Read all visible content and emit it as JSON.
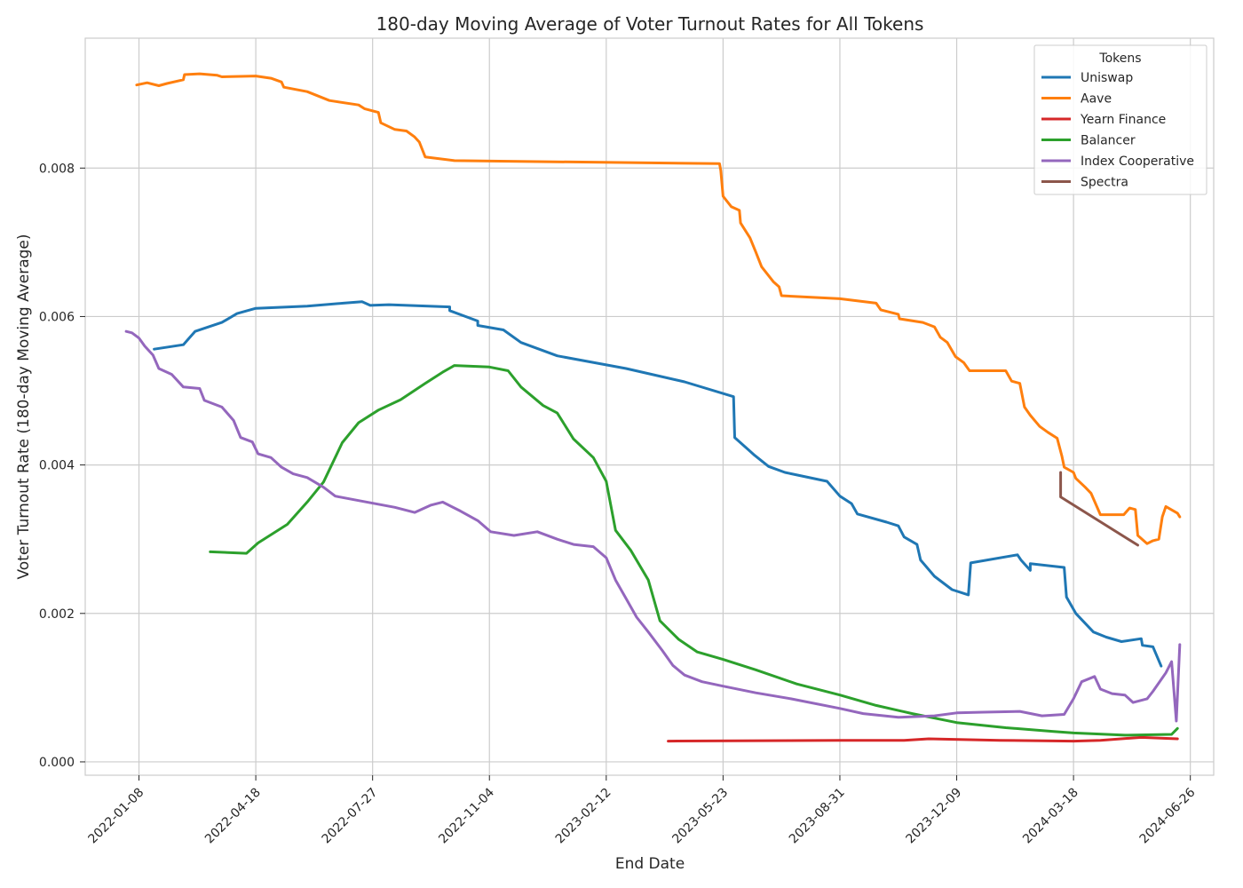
{
  "chart_data": {
    "type": "line",
    "title": "180-day Moving Average of Voter Turnout Rates for All Tokens",
    "xlabel": "End Date",
    "ylabel": "Voter Turnout Rate (180-day Moving Average)",
    "x_ticks": [
      "2022-01-08",
      "2022-04-18",
      "2022-07-27",
      "2022-11-04",
      "2023-02-12",
      "2023-05-23",
      "2023-08-31",
      "2023-12-09",
      "2024-03-18",
      "2024-06-26"
    ],
    "y_ticks": [
      "0.000",
      "0.002",
      "0.004",
      "0.006",
      "0.008"
    ],
    "xlim": [
      "2021-11-23",
      "2024-07-16"
    ],
    "ylim": [
      -0.00018,
      0.00975
    ],
    "grid": true,
    "legend_title": "Tokens",
    "legend_position": "top-right",
    "series": [
      {
        "name": "Uniswap",
        "color": "#1f77b4",
        "points": [
          [
            "2022-01-21",
            0.00556
          ],
          [
            "2022-02-15",
            0.00562
          ],
          [
            "2022-02-25",
            0.0058
          ],
          [
            "2022-03-20",
            0.00592
          ],
          [
            "2022-04-02",
            0.00604
          ],
          [
            "2022-04-18",
            0.00611
          ],
          [
            "2022-06-01",
            0.00614
          ],
          [
            "2022-07-02",
            0.00618
          ],
          [
            "2022-07-18",
            0.0062
          ],
          [
            "2022-07-25",
            0.00615
          ],
          [
            "2022-08-10",
            0.00616
          ],
          [
            "2022-10-01",
            0.00613
          ],
          [
            "2022-10-01",
            0.00608
          ],
          [
            "2022-10-25",
            0.00594
          ],
          [
            "2022-10-25",
            0.00588
          ],
          [
            "2022-11-16",
            0.00582
          ],
          [
            "2022-12-01",
            0.00565
          ],
          [
            "2023-01-01",
            0.00547
          ],
          [
            "2023-03-01",
            0.0053
          ],
          [
            "2023-04-20",
            0.00512
          ],
          [
            "2023-06-01",
            0.00492
          ],
          [
            "2023-06-02",
            0.00437
          ],
          [
            "2023-06-19",
            0.00413
          ],
          [
            "2023-07-01",
            0.00398
          ],
          [
            "2023-07-15",
            0.0039
          ],
          [
            "2023-08-20",
            0.00378
          ],
          [
            "2023-08-31",
            0.00358
          ],
          [
            "2023-09-10",
            0.00348
          ],
          [
            "2023-09-15",
            0.00334
          ],
          [
            "2023-10-10",
            0.00323
          ],
          [
            "2023-10-20",
            0.00318
          ],
          [
            "2023-10-25",
            0.00303
          ],
          [
            "2023-11-05",
            0.00293
          ],
          [
            "2023-11-08",
            0.00272
          ],
          [
            "2023-11-20",
            0.0025
          ],
          [
            "2023-12-05",
            0.00232
          ],
          [
            "2023-12-19",
            0.00225
          ],
          [
            "2023-12-21",
            0.00268
          ],
          [
            "2024-01-30",
            0.00279
          ],
          [
            "2024-02-02",
            0.00272
          ],
          [
            "2024-02-10",
            0.00258
          ],
          [
            "2024-02-10",
            0.00267
          ],
          [
            "2024-03-10",
            0.00262
          ],
          [
            "2024-03-12",
            0.00222
          ],
          [
            "2024-03-20",
            0.002
          ],
          [
            "2024-04-04",
            0.00175
          ],
          [
            "2024-04-15",
            0.00168
          ],
          [
            "2024-04-28",
            0.00162
          ],
          [
            "2024-05-15",
            0.00166
          ],
          [
            "2024-05-16",
            0.00157
          ],
          [
            "2024-05-25",
            0.00155
          ],
          [
            "2024-06-01",
            0.00129
          ]
        ]
      },
      {
        "name": "Aave",
        "color": "#ff7f0e",
        "points": [
          [
            "2022-01-06",
            0.00912
          ],
          [
            "2022-01-15",
            0.00915
          ],
          [
            "2022-01-25",
            0.00911
          ],
          [
            "2022-02-01",
            0.00914
          ],
          [
            "2022-02-15",
            0.00919
          ],
          [
            "2022-02-16",
            0.00926
          ],
          [
            "2022-03-01",
            0.00927
          ],
          [
            "2022-03-16",
            0.00925
          ],
          [
            "2022-03-20",
            0.00923
          ],
          [
            "2022-04-18",
            0.00924
          ],
          [
            "2022-05-01",
            0.00921
          ],
          [
            "2022-05-10",
            0.00916
          ],
          [
            "2022-05-12",
            0.00909
          ],
          [
            "2022-06-01",
            0.00903
          ],
          [
            "2022-06-20",
            0.00891
          ],
          [
            "2022-07-15",
            0.00885
          ],
          [
            "2022-07-20",
            0.0088
          ],
          [
            "2022-08-01",
            0.00875
          ],
          [
            "2022-08-03",
            0.00861
          ],
          [
            "2022-08-15",
            0.00852
          ],
          [
            "2022-08-25",
            0.0085
          ],
          [
            "2022-09-01",
            0.00842
          ],
          [
            "2022-09-05",
            0.00835
          ],
          [
            "2022-09-10",
            0.00815
          ],
          [
            "2022-10-05",
            0.0081
          ],
          [
            "2023-05-20",
            0.00806
          ],
          [
            "2023-05-21",
            0.00797
          ],
          [
            "2023-05-23",
            0.00762
          ],
          [
            "2023-05-30",
            0.00748
          ],
          [
            "2023-06-06",
            0.00743
          ],
          [
            "2023-06-07",
            0.00726
          ],
          [
            "2023-06-15",
            0.00706
          ],
          [
            "2023-06-20",
            0.00687
          ],
          [
            "2023-06-25",
            0.00667
          ],
          [
            "2023-07-05",
            0.00647
          ],
          [
            "2023-07-10",
            0.0064
          ],
          [
            "2023-07-12",
            0.00628
          ],
          [
            "2023-08-31",
            0.00624
          ],
          [
            "2023-10-01",
            0.00618
          ],
          [
            "2023-10-05",
            0.00609
          ],
          [
            "2023-10-20",
            0.00603
          ],
          [
            "2023-10-21",
            0.00597
          ],
          [
            "2023-11-10",
            0.00592
          ],
          [
            "2023-11-20",
            0.00586
          ],
          [
            "2023-11-25",
            0.00572
          ],
          [
            "2023-12-01",
            0.00565
          ],
          [
            "2023-12-08",
            0.00546
          ],
          [
            "2023-12-15",
            0.00538
          ],
          [
            "2023-12-20",
            0.00527
          ],
          [
            "2024-01-20",
            0.00527
          ],
          [
            "2024-01-25",
            0.00513
          ],
          [
            "2024-02-01",
            0.0051
          ],
          [
            "2024-02-05",
            0.00478
          ],
          [
            "2024-02-10",
            0.00467
          ],
          [
            "2024-02-18",
            0.00452
          ],
          [
            "2024-02-25",
            0.00444
          ],
          [
            "2024-03-04",
            0.00436
          ],
          [
            "2024-03-08",
            0.00412
          ],
          [
            "2024-03-10",
            0.00397
          ],
          [
            "2024-03-18",
            0.0039
          ],
          [
            "2024-03-20",
            0.00382
          ],
          [
            "2024-03-28",
            0.0037
          ],
          [
            "2024-04-02",
            0.00362
          ],
          [
            "2024-04-10",
            0.00333
          ],
          [
            "2024-04-30",
            0.00333
          ],
          [
            "2024-05-05",
            0.00342
          ],
          [
            "2024-05-10",
            0.0034
          ],
          [
            "2024-05-12",
            0.00305
          ],
          [
            "2024-05-20",
            0.00294
          ],
          [
            "2024-05-25",
            0.00298
          ],
          [
            "2024-05-30",
            0.003
          ],
          [
            "2024-06-02",
            0.0033
          ],
          [
            "2024-06-05",
            0.00344
          ],
          [
            "2024-06-15",
            0.00335
          ],
          [
            "2024-06-17",
            0.0033
          ]
        ]
      },
      {
        "name": "Yearn Finance",
        "color": "#d62728",
        "points": [
          [
            "2023-04-06",
            0.00028
          ],
          [
            "2023-08-31",
            0.00029
          ],
          [
            "2023-10-25",
            0.00029
          ],
          [
            "2023-11-15",
            0.00031
          ],
          [
            "2024-01-15",
            0.00029
          ],
          [
            "2024-03-18",
            0.00028
          ],
          [
            "2024-04-10",
            0.00029
          ],
          [
            "2024-05-15",
            0.00033
          ],
          [
            "2024-06-15",
            0.00031
          ]
        ]
      },
      {
        "name": "Balancer",
        "color": "#2ca02c",
        "points": [
          [
            "2022-03-10",
            0.00283
          ],
          [
            "2022-04-10",
            0.00281
          ],
          [
            "2022-04-20",
            0.00295
          ],
          [
            "2022-05-15",
            0.0032
          ],
          [
            "2022-06-01",
            0.0035
          ],
          [
            "2022-06-15",
            0.00377
          ],
          [
            "2022-07-01",
            0.0043
          ],
          [
            "2022-07-15",
            0.00457
          ],
          [
            "2022-08-01",
            0.00474
          ],
          [
            "2022-08-20",
            0.00488
          ],
          [
            "2022-09-10",
            0.0051
          ],
          [
            "2022-09-25",
            0.00525
          ],
          [
            "2022-10-05",
            0.00534
          ],
          [
            "2022-11-04",
            0.00532
          ],
          [
            "2022-11-20",
            0.00527
          ],
          [
            "2022-12-01",
            0.00505
          ],
          [
            "2022-12-20",
            0.0048
          ],
          [
            "2023-01-01",
            0.0047
          ],
          [
            "2023-01-15",
            0.00435
          ],
          [
            "2023-02-01",
            0.0041
          ],
          [
            "2023-02-12",
            0.00378
          ],
          [
            "2023-02-20",
            0.00312
          ],
          [
            "2023-03-05",
            0.00285
          ],
          [
            "2023-03-20",
            0.00245
          ],
          [
            "2023-03-30",
            0.0019
          ],
          [
            "2023-04-15",
            0.00165
          ],
          [
            "2023-05-01",
            0.00148
          ],
          [
            "2023-05-23",
            0.00138
          ],
          [
            "2023-06-20",
            0.00124
          ],
          [
            "2023-07-25",
            0.00105
          ],
          [
            "2023-08-31",
            0.0009
          ],
          [
            "2023-10-01",
            0.00076
          ],
          [
            "2023-11-01",
            0.00065
          ],
          [
            "2023-12-09",
            0.00053
          ],
          [
            "2024-01-20",
            0.00046
          ],
          [
            "2024-03-01",
            0.00041
          ],
          [
            "2024-03-18",
            0.00039
          ],
          [
            "2024-05-01",
            0.00036
          ],
          [
            "2024-06-10",
            0.00037
          ],
          [
            "2024-06-15",
            0.00045
          ]
        ]
      },
      {
        "name": "Index Cooperative",
        "color": "#9467bd",
        "points": [
          [
            "2021-12-28",
            0.0058
          ],
          [
            "2022-01-02",
            0.00578
          ],
          [
            "2022-01-08",
            0.00571
          ],
          [
            "2022-01-13",
            0.0056
          ],
          [
            "2022-01-20",
            0.00548
          ],
          [
            "2022-01-25",
            0.0053
          ],
          [
            "2022-02-05",
            0.00522
          ],
          [
            "2022-02-15",
            0.00505
          ],
          [
            "2022-03-01",
            0.00503
          ],
          [
            "2022-03-05",
            0.00487
          ],
          [
            "2022-03-20",
            0.00478
          ],
          [
            "2022-03-30",
            0.0046
          ],
          [
            "2022-04-05",
            0.00437
          ],
          [
            "2022-04-15",
            0.00431
          ],
          [
            "2022-04-20",
            0.00415
          ],
          [
            "2022-05-01",
            0.0041
          ],
          [
            "2022-05-10",
            0.00397
          ],
          [
            "2022-05-20",
            0.00388
          ],
          [
            "2022-06-01",
            0.00383
          ],
          [
            "2022-06-15",
            0.0037
          ],
          [
            "2022-06-25",
            0.00358
          ],
          [
            "2022-07-15",
            0.00352
          ],
          [
            "2022-08-15",
            0.00343
          ],
          [
            "2022-09-01",
            0.00336
          ],
          [
            "2022-09-15",
            0.00346
          ],
          [
            "2022-09-25",
            0.0035
          ],
          [
            "2022-10-10",
            0.00338
          ],
          [
            "2022-10-25",
            0.00325
          ],
          [
            "2022-11-05",
            0.0031
          ],
          [
            "2022-11-25",
            0.00305
          ],
          [
            "2022-12-15",
            0.0031
          ],
          [
            "2023-01-01",
            0.003
          ],
          [
            "2023-01-15",
            0.00293
          ],
          [
            "2023-02-01",
            0.0029
          ],
          [
            "2023-02-12",
            0.00275
          ],
          [
            "2023-02-20",
            0.00245
          ],
          [
            "2023-03-01",
            0.0022
          ],
          [
            "2023-03-10",
            0.00195
          ],
          [
            "2023-03-20",
            0.00175
          ],
          [
            "2023-04-01",
            0.0015
          ],
          [
            "2023-04-10",
            0.0013
          ],
          [
            "2023-04-20",
            0.00117
          ],
          [
            "2023-05-05",
            0.00108
          ],
          [
            "2023-05-23",
            0.00102
          ],
          [
            "2023-06-20",
            0.00093
          ],
          [
            "2023-07-20",
            0.00085
          ],
          [
            "2023-08-31",
            0.00072
          ],
          [
            "2023-09-20",
            0.00065
          ],
          [
            "2023-10-20",
            0.0006
          ],
          [
            "2023-11-20",
            0.00062
          ],
          [
            "2023-12-09",
            0.00066
          ],
          [
            "2024-01-01",
            0.00067
          ],
          [
            "2024-02-01",
            0.00068
          ],
          [
            "2024-02-20",
            0.00062
          ],
          [
            "2024-03-10",
            0.00064
          ],
          [
            "2024-03-18",
            0.00085
          ],
          [
            "2024-03-25",
            0.00108
          ],
          [
            "2024-04-05",
            0.00115
          ],
          [
            "2024-04-10",
            0.00098
          ],
          [
            "2024-04-20",
            0.00092
          ],
          [
            "2024-05-01",
            0.0009
          ],
          [
            "2024-05-08",
            0.0008
          ],
          [
            "2024-05-20",
            0.00085
          ],
          [
            "2024-05-25",
            0.00095
          ],
          [
            "2024-06-05",
            0.0012
          ],
          [
            "2024-06-10",
            0.00135
          ],
          [
            "2024-06-14",
            0.00055
          ],
          [
            "2024-06-17",
            0.00158
          ]
        ]
      },
      {
        "name": "Spectra",
        "color": "#8c564b",
        "points": [
          [
            "2024-03-07",
            0.0039
          ],
          [
            "2024-03-07",
            0.00357
          ],
          [
            "2024-05-12",
            0.00292
          ]
        ]
      }
    ]
  }
}
